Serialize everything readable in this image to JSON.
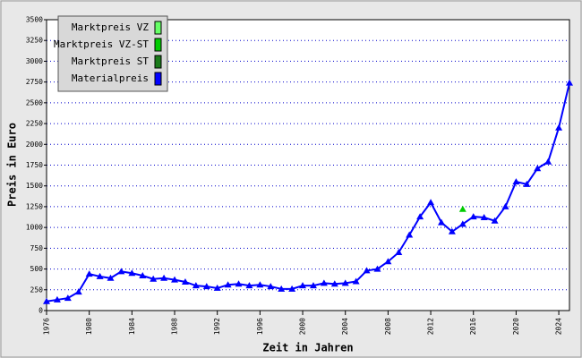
{
  "chart_data": {
    "type": "line",
    "xlabel": "Zeit in Jahren",
    "ylabel": "Preis in Euro",
    "x": [
      1976,
      1977,
      1978,
      1979,
      1980,
      1981,
      1982,
      1983,
      1984,
      1985,
      1986,
      1987,
      1988,
      1989,
      1990,
      1991,
      1992,
      1993,
      1994,
      1995,
      1996,
      1997,
      1998,
      1999,
      2000,
      2001,
      2002,
      2003,
      2004,
      2005,
      2006,
      2007,
      2008,
      2009,
      2010,
      2011,
      2012,
      2013,
      2014,
      2015,
      2016,
      2017,
      2018,
      2019,
      2020,
      2021,
      2022,
      2023,
      2024,
      2025
    ],
    "series": [
      {
        "name": "Marktpreis VZ",
        "color": "#66ff66",
        "values": [
          null,
          null,
          null,
          null,
          null,
          null,
          null,
          null,
          null,
          null,
          null,
          null,
          null,
          null,
          null,
          null,
          null,
          null,
          null,
          null,
          null,
          null,
          null,
          null,
          null,
          null,
          null,
          null,
          null,
          null,
          null,
          null,
          null,
          null,
          null,
          null,
          null,
          null,
          null,
          null,
          null,
          null,
          null,
          null,
          null,
          null,
          null,
          null,
          null,
          null
        ]
      },
      {
        "name": "Marktpreis VZ-ST",
        "color": "#00cc00",
        "values": [
          null,
          null,
          null,
          null,
          null,
          null,
          null,
          null,
          null,
          null,
          null,
          null,
          null,
          null,
          null,
          null,
          null,
          null,
          null,
          null,
          null,
          null,
          null,
          null,
          null,
          null,
          null,
          null,
          null,
          null,
          null,
          null,
          null,
          null,
          null,
          null,
          null,
          null,
          null,
          1220,
          null,
          null,
          null,
          null,
          null,
          null,
          null,
          null,
          null,
          null
        ]
      },
      {
        "name": "Marktpreis ST",
        "color": "#1a7a1a",
        "values": [
          null,
          null,
          null,
          null,
          null,
          null,
          null,
          null,
          null,
          null,
          null,
          null,
          null,
          null,
          null,
          null,
          null,
          null,
          null,
          null,
          null,
          null,
          null,
          null,
          null,
          null,
          null,
          null,
          null,
          null,
          null,
          null,
          null,
          null,
          null,
          null,
          null,
          null,
          null,
          null,
          null,
          null,
          null,
          null,
          null,
          null,
          null,
          null,
          null,
          null
        ]
      },
      {
        "name": "Materialpreis",
        "color": "#0000ff",
        "values": [
          110,
          130,
          150,
          225,
          440,
          410,
          390,
          470,
          450,
          420,
          380,
          390,
          370,
          345,
          300,
          290,
          270,
          310,
          320,
          300,
          310,
          290,
          260,
          260,
          300,
          300,
          330,
          320,
          330,
          350,
          480,
          500,
          590,
          700,
          910,
          1130,
          1300,
          1060,
          950,
          1040,
          1130,
          1120,
          1080,
          1250,
          1550,
          1520,
          1710,
          1790,
          2200,
          2740
        ]
      }
    ],
    "xlim": [
      1976,
      2025
    ],
    "ylim": [
      0,
      3500
    ],
    "xticks": [
      1976,
      1980,
      1984,
      1988,
      1992,
      1996,
      2000,
      2004,
      2008,
      2012,
      2016,
      2020,
      2024
    ],
    "yticks": [
      0,
      250,
      500,
      750,
      1000,
      1250,
      1500,
      1750,
      2000,
      2250,
      2500,
      2750,
      3000,
      3250,
      3500
    ],
    "grid": true,
    "legend": "top-left"
  }
}
